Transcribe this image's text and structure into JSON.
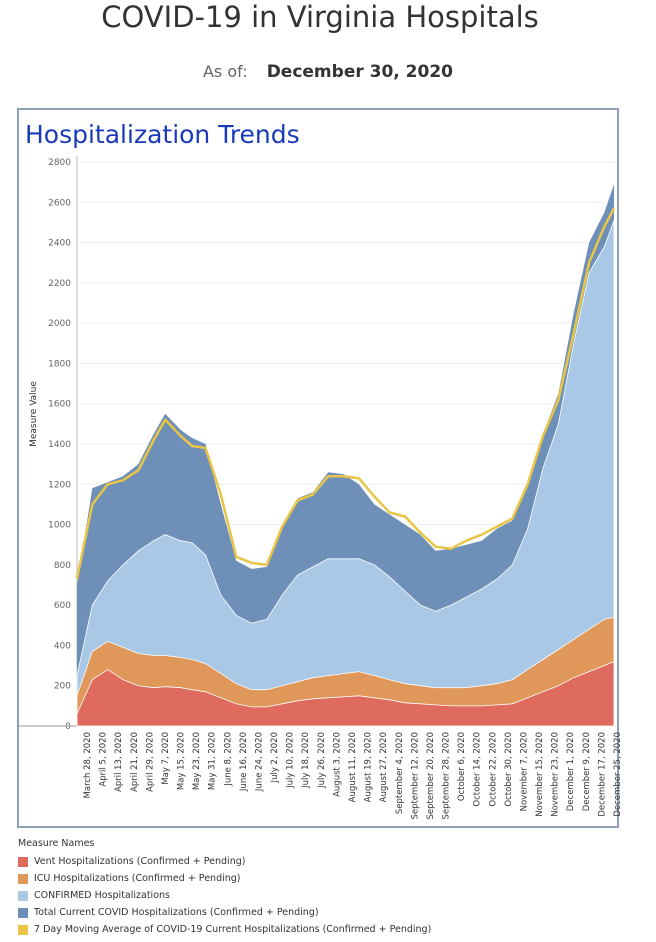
{
  "header": {
    "title": "COVID-19 in Virginia Hospitals",
    "as_of_label": "As of:",
    "as_of_value": "December 30, 2020"
  },
  "panel": {
    "title": "Hospitalization Trends"
  },
  "colors": {
    "vent": "#de6b5d",
    "icu": "#e0975a",
    "confirmed": "#a9c8e6",
    "total": "#6e90b8",
    "avg": "#e8c547"
  },
  "legend": {
    "title": "Measure Names",
    "items": [
      {
        "label": "Vent Hospitalizations (Confirmed + Pending)",
        "color": "#de6b5d"
      },
      {
        "label": "ICU Hospitalizations (Confirmed + Pending)",
        "color": "#e0975a"
      },
      {
        "label": "CONFIRMED Hospitalizations",
        "color": "#a9c8e6"
      },
      {
        "label": "Total Current COVID Hospitalizations (Confirmed + Pending)",
        "color": "#6e90b8"
      },
      {
        "label": "7 Day Moving Average of COVID-19 Current Hospitalizations (Confirmed + Pending)",
        "color": "#e8c547"
      }
    ]
  },
  "chart_data": {
    "type": "area",
    "ylabel": "Measure Value",
    "ylim": [
      0,
      2800
    ],
    "yticks": [
      0,
      200,
      400,
      600,
      800,
      1000,
      1200,
      1400,
      1600,
      1800,
      2000,
      2200,
      2400,
      2600,
      2800
    ],
    "grid": true,
    "x_range": [
      "2020-03-25",
      "2020-12-30"
    ],
    "x_tick_labels": [
      "March 28, 2020",
      "April 5, 2020",
      "April 13, 2020",
      "April 21, 2020",
      "April 29, 2020",
      "May 7, 2020",
      "May 15, 2020",
      "May 23, 2020",
      "May 31, 2020",
      "June 8, 2020",
      "June 16, 2020",
      "June 24, 2020",
      "July 2, 2020",
      "July 10, 2020",
      "July 18, 2020",
      "July 26, 2020",
      "August 3, 2020",
      "August 11, 2020",
      "August 19, 2020",
      "August 27, 2020",
      "September 4, 2020",
      "September 12, 2020",
      "September 20, 2020",
      "September 28, 2020",
      "October 6, 2020",
      "October 14, 2020",
      "October 22, 2020",
      "October 30, 2020",
      "November 7, 2020",
      "November 15, 2020",
      "November 23, 2020",
      "December 1, 2020",
      "December 9, 2020",
      "December 17, 2020",
      "December 25, 2020"
    ],
    "series": [
      {
        "name": "Total Current COVID Hospitalizations (Confirmed + Pending)",
        "key": "total",
        "x": [
          "2020-03-25",
          "2020-04-02",
          "2020-04-10",
          "2020-04-18",
          "2020-04-26",
          "2020-05-04",
          "2020-05-10",
          "2020-05-18",
          "2020-05-24",
          "2020-05-31",
          "2020-06-08",
          "2020-06-16",
          "2020-06-24",
          "2020-07-02",
          "2020-07-10",
          "2020-07-18",
          "2020-07-26",
          "2020-08-03",
          "2020-08-11",
          "2020-08-19",
          "2020-08-27",
          "2020-09-04",
          "2020-09-12",
          "2020-09-20",
          "2020-09-28",
          "2020-10-06",
          "2020-10-14",
          "2020-10-22",
          "2020-10-30",
          "2020-11-07",
          "2020-11-15",
          "2020-11-23",
          "2020-12-01",
          "2020-12-09",
          "2020-12-17",
          "2020-12-25",
          "2020-12-30"
        ],
        "values": [
          700,
          1180,
          1210,
          1240,
          1300,
          1450,
          1550,
          1470,
          1430,
          1400,
          1100,
          820,
          780,
          790,
          1000,
          1130,
          1160,
          1260,
          1250,
          1200,
          1100,
          1050,
          1000,
          950,
          870,
          880,
          900,
          920,
          980,
          1020,
          1200,
          1450,
          1650,
          2050,
          2400,
          2550,
          2690
        ]
      },
      {
        "name": "CONFIRMED Hospitalizations",
        "key": "confirmed",
        "x": [
          "2020-03-25",
          "2020-04-02",
          "2020-04-10",
          "2020-04-18",
          "2020-04-26",
          "2020-05-04",
          "2020-05-10",
          "2020-05-18",
          "2020-05-24",
          "2020-05-31",
          "2020-06-08",
          "2020-06-16",
          "2020-06-24",
          "2020-07-02",
          "2020-07-10",
          "2020-07-18",
          "2020-07-26",
          "2020-08-03",
          "2020-08-11",
          "2020-08-19",
          "2020-08-27",
          "2020-09-04",
          "2020-09-12",
          "2020-09-20",
          "2020-09-28",
          "2020-10-06",
          "2020-10-14",
          "2020-10-22",
          "2020-10-30",
          "2020-11-07",
          "2020-11-15",
          "2020-11-23",
          "2020-12-01",
          "2020-12-09",
          "2020-12-17",
          "2020-12-25",
          "2020-12-30"
        ],
        "values": [
          250,
          600,
          720,
          800,
          870,
          920,
          950,
          920,
          910,
          850,
          650,
          550,
          510,
          530,
          650,
          750,
          790,
          830,
          830,
          830,
          800,
          740,
          670,
          600,
          570,
          600,
          640,
          680,
          730,
          800,
          980,
          1280,
          1500,
          1900,
          2250,
          2380,
          2510
        ]
      },
      {
        "name": "ICU Hospitalizations (Confirmed + Pending)",
        "key": "icu",
        "x": [
          "2020-03-25",
          "2020-04-02",
          "2020-04-10",
          "2020-04-18",
          "2020-04-26",
          "2020-05-04",
          "2020-05-10",
          "2020-05-18",
          "2020-05-24",
          "2020-05-31",
          "2020-06-08",
          "2020-06-16",
          "2020-06-24",
          "2020-07-02",
          "2020-07-10",
          "2020-07-18",
          "2020-07-26",
          "2020-08-03",
          "2020-08-11",
          "2020-08-19",
          "2020-08-27",
          "2020-09-04",
          "2020-09-12",
          "2020-09-20",
          "2020-09-28",
          "2020-10-06",
          "2020-10-14",
          "2020-10-22",
          "2020-10-30",
          "2020-11-07",
          "2020-11-15",
          "2020-11-23",
          "2020-12-01",
          "2020-12-09",
          "2020-12-17",
          "2020-12-25",
          "2020-12-30"
        ],
        "values": [
          150,
          370,
          420,
          390,
          360,
          350,
          350,
          340,
          330,
          310,
          260,
          210,
          180,
          180,
          200,
          220,
          240,
          250,
          260,
          270,
          250,
          230,
          210,
          200,
          190,
          190,
          190,
          200,
          210,
          230,
          280,
          330,
          380,
          430,
          480,
          530,
          540
        ]
      },
      {
        "name": "Vent Hospitalizations (Confirmed + Pending)",
        "key": "vent",
        "x": [
          "2020-03-25",
          "2020-04-02",
          "2020-04-10",
          "2020-04-18",
          "2020-04-26",
          "2020-05-04",
          "2020-05-10",
          "2020-05-18",
          "2020-05-24",
          "2020-05-31",
          "2020-06-08",
          "2020-06-16",
          "2020-06-24",
          "2020-07-02",
          "2020-07-10",
          "2020-07-18",
          "2020-07-26",
          "2020-08-03",
          "2020-08-11",
          "2020-08-19",
          "2020-08-27",
          "2020-09-04",
          "2020-09-12",
          "2020-09-20",
          "2020-09-28",
          "2020-10-06",
          "2020-10-14",
          "2020-10-22",
          "2020-10-30",
          "2020-11-07",
          "2020-11-15",
          "2020-11-23",
          "2020-12-01",
          "2020-12-09",
          "2020-12-17",
          "2020-12-25",
          "2020-12-30"
        ],
        "values": [
          60,
          230,
          280,
          230,
          200,
          190,
          195,
          190,
          180,
          170,
          140,
          110,
          95,
          95,
          110,
          125,
          135,
          140,
          145,
          150,
          140,
          130,
          115,
          110,
          105,
          100,
          100,
          100,
          105,
          110,
          140,
          170,
          200,
          240,
          270,
          300,
          320
        ]
      },
      {
        "name": "7 Day Moving Average of COVID-19 Current Hospitalizations (Confirmed + Pending)",
        "key": "avg",
        "x": [
          "2020-03-25",
          "2020-04-02",
          "2020-04-10",
          "2020-04-18",
          "2020-04-26",
          "2020-05-04",
          "2020-05-10",
          "2020-05-18",
          "2020-05-24",
          "2020-05-31",
          "2020-06-08",
          "2020-06-16",
          "2020-06-24",
          "2020-07-02",
          "2020-07-10",
          "2020-07-18",
          "2020-07-26",
          "2020-08-03",
          "2020-08-11",
          "2020-08-19",
          "2020-08-27",
          "2020-09-04",
          "2020-09-12",
          "2020-09-20",
          "2020-09-28",
          "2020-10-06",
          "2020-10-14",
          "2020-10-22",
          "2020-10-30",
          "2020-11-07",
          "2020-11-15",
          "2020-11-23",
          "2020-12-01",
          "2020-12-09",
          "2020-12-17",
          "2020-12-25",
          "2020-12-30"
        ],
        "values": [
          730,
          1100,
          1200,
          1220,
          1270,
          1420,
          1520,
          1440,
          1390,
          1380,
          1150,
          840,
          810,
          800,
          990,
          1120,
          1150,
          1240,
          1240,
          1230,
          1140,
          1060,
          1040,
          960,
          890,
          880,
          920,
          950,
          990,
          1030,
          1200,
          1440,
          1620,
          1950,
          2300,
          2480,
          2570
        ]
      }
    ]
  }
}
